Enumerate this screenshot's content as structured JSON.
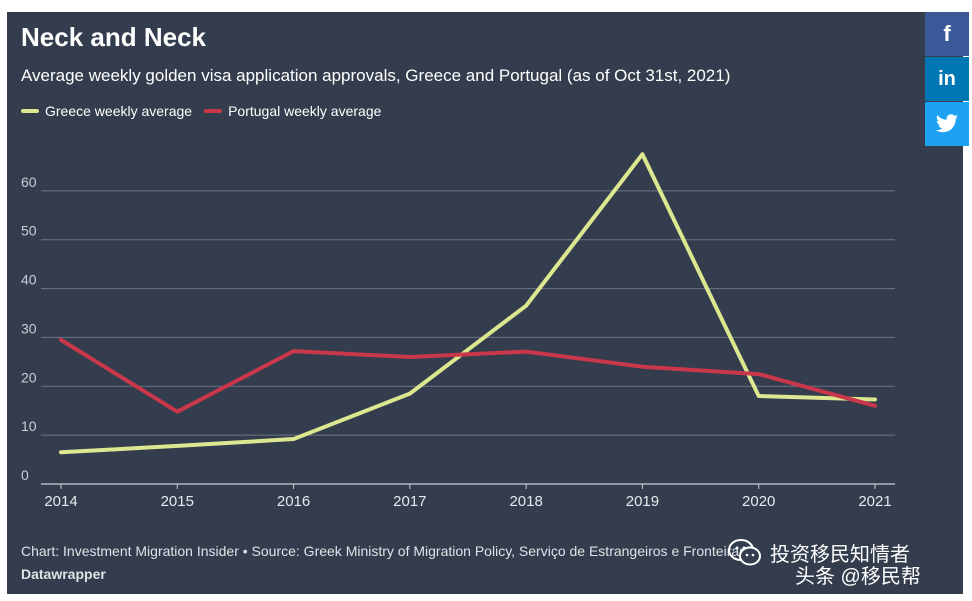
{
  "header": {
    "title": "Neck and Neck",
    "subtitle": "Average weekly golden visa application approvals, Greece and Portugal (as of Oct 31st, 2021)"
  },
  "legend": [
    {
      "label": "Greece weekly average",
      "color": "#dce78f"
    },
    {
      "label": "Portugal weekly average",
      "color": "#c9374a"
    }
  ],
  "footer": {
    "source": "Chart: Investment Migration Insider • Source: Greek Ministry of Migration Policy, Serviço de Estrangeiros e Fronteiras",
    "credit": "Datawrapper"
  },
  "share": {
    "facebook": "f",
    "linkedin": "in",
    "twitter": "twitter-icon"
  },
  "watermark": {
    "line1": "投资移民知情者",
    "line2": "头条 @移民帮"
  },
  "colors": {
    "background": "#333d4d",
    "grid": "#6b7585",
    "axis_text": "#e6e9ee"
  },
  "chart_data": {
    "type": "line",
    "title": "Neck and Neck",
    "x": [
      "2014",
      "2015",
      "2016",
      "2017",
      "2018",
      "2019",
      "2020",
      "2021"
    ],
    "series": [
      {
        "name": "Greece weekly average",
        "color": "#dce78f",
        "values": [
          6.5,
          7.8,
          9.2,
          18.5,
          36.5,
          67.5,
          18.0,
          17.3
        ]
      },
      {
        "name": "Portugal weekly average",
        "color": "#c9374a",
        "values": [
          29.5,
          14.8,
          27.2,
          26.0,
          27.1,
          24.0,
          22.5,
          16.0
        ]
      }
    ],
    "yticks": [
      0,
      10,
      20,
      30,
      40,
      50,
      60
    ],
    "ylim": [
      0,
      70
    ],
    "xlabel": "",
    "ylabel": "",
    "grid": true
  }
}
